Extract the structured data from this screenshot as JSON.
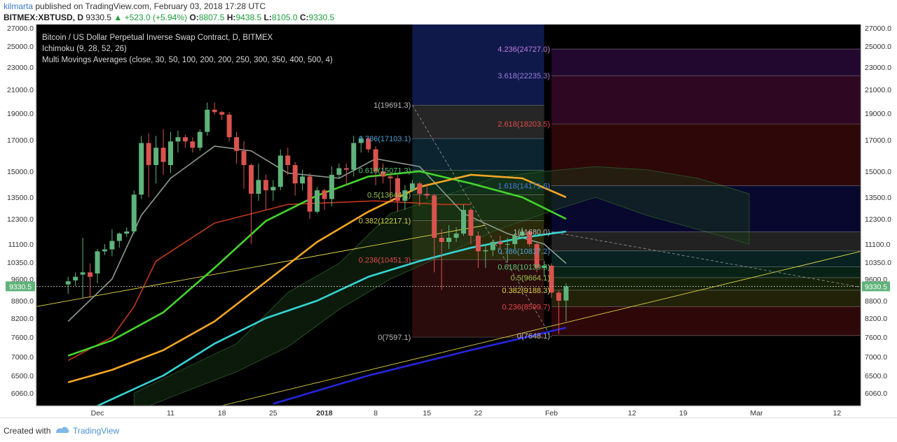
{
  "header": {
    "author": "kilmarta",
    "published": "published on TradingView.com, February 03, 2018 17:28 UTC",
    "symbol": "BITMEX:XBTUSD, D",
    "last": "9330.5",
    "change": "+523.0 (+5.94%)",
    "open_label": "O:",
    "open": "8807.5",
    "high_label": "H:",
    "high": "9438.5",
    "low_label": "L:",
    "low": "8105.0",
    "close_label": "C:",
    "close": "9330.5"
  },
  "legend": {
    "title": "Bitcoin / US Dollar Perpetual Inverse Swap Contract, D, BITMEX",
    "ichimoku": "Ichimoku (9, 28, 52, 26)",
    "mma": "Multi Movings Averages (close, 30, 50, 100, 200, 200, 250, 300, 350, 400, 500, 4)"
  },
  "footer": {
    "created": "Created with",
    "brand": "TradingView"
  },
  "colors": {
    "background": "#000000",
    "up": "#5fb37a",
    "down": "#d9534f",
    "ma30": "#44d62c",
    "ma50": "#f5a623",
    "ma100": "#35d6d6",
    "ma200": "#2626e0",
    "tenkan": "#8c9c8c",
    "kijun": "#c0391b"
  },
  "chart_data": {
    "type": "candlestick",
    "price_label": "9330.5",
    "y_ticks": [
      "27000.0",
      "25000.0",
      "23000.0",
      "21000.0",
      "19000.0",
      "17000.0",
      "15000.0",
      "13500.0",
      "12300.0",
      "11100.0",
      "10350.0",
      "9600.0",
      "8800.0",
      "8200.0",
      "7600.0",
      "7000.0",
      "6500.0",
      "6060.0"
    ],
    "x_ticks": [
      "Dec",
      "11",
      "18",
      "25",
      "2018",
      "8",
      "15",
      "22",
      "Feb",
      "12",
      "19",
      "Mar",
      "12"
    ],
    "x_tick_dates": [
      "2017-12-01",
      "2017-12-11",
      "2017-12-18",
      "2017-12-25",
      "2018-01-01",
      "2018-01-08",
      "2018-01-15",
      "2018-01-22",
      "2018-02-01",
      "2018-02-12",
      "2018-02-19",
      "2018-03-01",
      "2018-03-12"
    ],
    "candles": [
      {
        "d": "2017-11-27",
        "o": 9400,
        "h": 9700,
        "l": 9050,
        "c": 9520
      },
      {
        "d": "2017-11-28",
        "o": 9550,
        "h": 9900,
        "l": 9350,
        "c": 9700
      },
      {
        "d": "2017-11-29",
        "o": 9800,
        "h": 11400,
        "l": 8900,
        "c": 9900
      },
      {
        "d": "2017-11-30",
        "o": 9900,
        "h": 10300,
        "l": 8900,
        "c": 9700
      },
      {
        "d": "2017-12-01",
        "o": 9850,
        "h": 10900,
        "l": 9450,
        "c": 10800
      },
      {
        "d": "2017-12-02",
        "o": 10800,
        "h": 11100,
        "l": 10650,
        "c": 10880
      },
      {
        "d": "2017-12-03",
        "o": 10880,
        "h": 11800,
        "l": 10600,
        "c": 11250
      },
      {
        "d": "2017-12-04",
        "o": 11250,
        "h": 11650,
        "l": 10950,
        "c": 11600
      },
      {
        "d": "2017-12-05",
        "o": 11600,
        "h": 11900,
        "l": 11450,
        "c": 11700
      },
      {
        "d": "2017-12-06",
        "o": 11700,
        "h": 13900,
        "l": 11600,
        "c": 13650
      },
      {
        "d": "2017-12-07",
        "o": 13650,
        "h": 17300,
        "l": 13400,
        "c": 16800
      },
      {
        "d": "2017-12-08",
        "o": 16800,
        "h": 17500,
        "l": 13500,
        "c": 15400
      },
      {
        "d": "2017-12-09",
        "o": 15400,
        "h": 17300,
        "l": 14300,
        "c": 16500
      },
      {
        "d": "2017-12-10",
        "o": 16500,
        "h": 17800,
        "l": 14800,
        "c": 15600
      },
      {
        "d": "2017-12-11",
        "o": 15400,
        "h": 17600,
        "l": 14900,
        "c": 16900
      },
      {
        "d": "2017-12-12",
        "o": 16900,
        "h": 17700,
        "l": 16200,
        "c": 17200
      },
      {
        "d": "2017-12-13",
        "o": 17200,
        "h": 17400,
        "l": 16500,
        "c": 16900
      },
      {
        "d": "2017-12-14",
        "o": 16900,
        "h": 17200,
        "l": 16200,
        "c": 16500
      },
      {
        "d": "2017-12-15",
        "o": 16500,
        "h": 17800,
        "l": 16300,
        "c": 17600
      },
      {
        "d": "2017-12-16",
        "o": 17600,
        "h": 19900,
        "l": 17300,
        "c": 19300
      },
      {
        "d": "2017-12-17",
        "o": 19300,
        "h": 19900,
        "l": 18900,
        "c": 19100
      },
      {
        "d": "2017-12-18",
        "o": 19100,
        "h": 19200,
        "l": 18500,
        "c": 18900
      },
      {
        "d": "2017-12-19",
        "o": 18900,
        "h": 19100,
        "l": 16900,
        "c": 17200
      },
      {
        "d": "2017-12-20",
        "o": 17200,
        "h": 17600,
        "l": 15500,
        "c": 16300
      },
      {
        "d": "2017-12-21",
        "o": 16300,
        "h": 16900,
        "l": 14000,
        "c": 15400
      },
      {
        "d": "2017-12-22",
        "o": 15400,
        "h": 15500,
        "l": 11100,
        "c": 13700
      },
      {
        "d": "2017-12-23",
        "o": 13700,
        "h": 15500,
        "l": 13300,
        "c": 14500
      },
      {
        "d": "2017-12-24",
        "o": 14500,
        "h": 14800,
        "l": 12800,
        "c": 13900
      },
      {
        "d": "2017-12-25",
        "o": 13900,
        "h": 14500,
        "l": 13300,
        "c": 14100
      },
      {
        "d": "2017-12-26",
        "o": 14100,
        "h": 16400,
        "l": 13900,
        "c": 16000
      },
      {
        "d": "2017-12-27",
        "o": 16000,
        "h": 16500,
        "l": 14800,
        "c": 15400
      },
      {
        "d": "2017-12-28",
        "o": 15400,
        "h": 15600,
        "l": 13600,
        "c": 14300
      },
      {
        "d": "2017-12-29",
        "o": 14300,
        "h": 15100,
        "l": 13900,
        "c": 14700
      },
      {
        "d": "2017-12-30",
        "o": 14700,
        "h": 14900,
        "l": 12300,
        "c": 12700
      },
      {
        "d": "2017-12-31",
        "o": 12700,
        "h": 14100,
        "l": 12600,
        "c": 13900
      },
      {
        "d": "2018-01-01",
        "o": 13900,
        "h": 14000,
        "l": 12800,
        "c": 13400
      },
      {
        "d": "2018-01-02",
        "o": 13400,
        "h": 15300,
        "l": 13000,
        "c": 14800
      },
      {
        "d": "2018-01-03",
        "o": 14800,
        "h": 15500,
        "l": 14600,
        "c": 15200
      },
      {
        "d": "2018-01-04",
        "o": 15200,
        "h": 15500,
        "l": 14200,
        "c": 15100
      },
      {
        "d": "2018-01-05",
        "o": 15100,
        "h": 17300,
        "l": 14700,
        "c": 16800
      },
      {
        "d": "2018-01-06",
        "o": 16800,
        "h": 17300,
        "l": 16200,
        "c": 17100
      },
      {
        "d": "2018-01-07",
        "o": 17100,
        "h": 17200,
        "l": 16200,
        "c": 16400
      },
      {
        "d": "2018-01-08",
        "o": 16400,
        "h": 16600,
        "l": 14200,
        "c": 15000
      },
      {
        "d": "2018-01-09",
        "o": 15000,
        "h": 15500,
        "l": 14300,
        "c": 14700
      },
      {
        "d": "2018-01-10",
        "o": 14700,
        "h": 14900,
        "l": 13200,
        "c": 14600
      },
      {
        "d": "2018-01-11",
        "o": 14600,
        "h": 14800,
        "l": 12700,
        "c": 13300
      },
      {
        "d": "2018-01-12",
        "o": 13300,
        "h": 14200,
        "l": 12800,
        "c": 13900
      },
      {
        "d": "2018-01-13",
        "o": 13900,
        "h": 14500,
        "l": 13800,
        "c": 14300
      },
      {
        "d": "2018-01-14",
        "o": 14300,
        "h": 14400,
        "l": 13000,
        "c": 13700
      },
      {
        "d": "2018-01-15",
        "o": 13700,
        "h": 14300,
        "l": 13400,
        "c": 13600
      },
      {
        "d": "2018-01-16",
        "o": 13600,
        "h": 13700,
        "l": 9900,
        "c": 11400
      },
      {
        "d": "2018-01-17",
        "o": 11400,
        "h": 11800,
        "l": 9200,
        "c": 11200
      },
      {
        "d": "2018-01-18",
        "o": 11200,
        "h": 12000,
        "l": 10900,
        "c": 11400
      },
      {
        "d": "2018-01-19",
        "o": 11400,
        "h": 11900,
        "l": 11200,
        "c": 11600
      },
      {
        "d": "2018-01-20",
        "o": 11600,
        "h": 13100,
        "l": 11500,
        "c": 12800
      },
      {
        "d": "2018-01-21",
        "o": 12800,
        "h": 12900,
        "l": 11100,
        "c": 11500
      },
      {
        "d": "2018-01-22",
        "o": 11500,
        "h": 11700,
        "l": 10100,
        "c": 10800
      },
      {
        "d": "2018-01-23",
        "o": 10800,
        "h": 11100,
        "l": 10100,
        "c": 10850
      },
      {
        "d": "2018-01-24",
        "o": 10850,
        "h": 11300,
        "l": 10600,
        "c": 11200
      },
      {
        "d": "2018-01-25",
        "o": 11200,
        "h": 11500,
        "l": 10900,
        "c": 11100
      },
      {
        "d": "2018-01-26",
        "o": 11100,
        "h": 11400,
        "l": 10350,
        "c": 11100
      },
      {
        "d": "2018-01-27",
        "o": 11100,
        "h": 11600,
        "l": 10900,
        "c": 11500
      },
      {
        "d": "2018-01-28",
        "o": 11500,
        "h": 11900,
        "l": 11400,
        "c": 11700
      },
      {
        "d": "2018-01-29",
        "o": 11700,
        "h": 11750,
        "l": 11000,
        "c": 11100
      },
      {
        "d": "2018-01-30",
        "o": 11100,
        "h": 11200,
        "l": 9900,
        "c": 10100
      },
      {
        "d": "2018-01-31",
        "o": 10100,
        "h": 10400,
        "l": 9700,
        "c": 10200
      },
      {
        "d": "2018-02-01",
        "o": 10200,
        "h": 10300,
        "l": 8900,
        "c": 9100
      },
      {
        "d": "2018-02-02",
        "o": 9100,
        "h": 9200,
        "l": 7700,
        "c": 8800
      },
      {
        "d": "2018-02-03",
        "o": 8807.5,
        "h": 9438.5,
        "l": 8105,
        "c": 9330.5
      }
    ],
    "moving_averages": [
      {
        "name": "MA 30",
        "color": "#44d62c",
        "points": [
          [
            "2017-11-27",
            7030
          ],
          [
            "2017-12-03",
            7500
          ],
          [
            "2017-12-10",
            8400
          ],
          [
            "2017-12-17",
            10100
          ],
          [
            "2017-12-24",
            12200
          ],
          [
            "2017-12-31",
            13600
          ],
          [
            "2018-01-07",
            14700
          ],
          [
            "2018-01-14",
            15000
          ],
          [
            "2018-01-21",
            14300
          ],
          [
            "2018-01-28",
            13500
          ],
          [
            "2018-02-03",
            12300
          ]
        ]
      },
      {
        "name": "MA 50",
        "color": "#f5a623",
        "points": [
          [
            "2017-11-27",
            6330
          ],
          [
            "2017-12-03",
            6650
          ],
          [
            "2017-12-10",
            7200
          ],
          [
            "2017-12-17",
            8100
          ],
          [
            "2017-12-24",
            9500
          ],
          [
            "2017-12-31",
            11200
          ],
          [
            "2018-01-07",
            12700
          ],
          [
            "2018-01-14",
            14100
          ],
          [
            "2018-01-21",
            14800
          ],
          [
            "2018-01-28",
            14600
          ],
          [
            "2018-02-03",
            13500
          ]
        ]
      },
      {
        "name": "MA 100",
        "color": "#35d6d6",
        "points": [
          [
            "2017-12-01",
            5750
          ],
          [
            "2017-12-10",
            6500
          ],
          [
            "2017-12-17",
            7400
          ],
          [
            "2017-12-24",
            8200
          ],
          [
            "2017-12-31",
            8800
          ],
          [
            "2018-01-07",
            9700
          ],
          [
            "2018-01-14",
            10400
          ],
          [
            "2018-01-21",
            10950
          ],
          [
            "2018-01-28",
            11400
          ],
          [
            "2018-02-03",
            11700
          ]
        ]
      },
      {
        "name": "MA 200",
        "color": "#2626e0",
        "points": [
          [
            "2017-12-25",
            5800
          ],
          [
            "2018-01-07",
            6500
          ],
          [
            "2018-01-21",
            7200
          ],
          [
            "2018-02-03",
            7900
          ]
        ]
      }
    ],
    "fib_left": [
      {
        "label": "1(19691.3)",
        "value": 19691.3
      },
      {
        "label": "0.786(17103.1)",
        "value": 17103.1
      },
      {
        "label": "0.618(15071.3)",
        "value": 15071.3
      },
      {
        "label": "0.5(13644.2)",
        "value": 13644.2
      },
      {
        "label": "0.382(12217.1)",
        "value": 12217.1
      },
      {
        "label": "0.236(10451.3)",
        "value": 10451.3
      },
      {
        "label": "0(7597.1)",
        "value": 7597.1
      }
    ],
    "fib_right": [
      {
        "label": "4.236(24727.0)",
        "value": 24727.0
      },
      {
        "label": "3.618(22235.3)",
        "value": 22235.3
      },
      {
        "label": "2.618(18203.5)",
        "value": 18203.5
      },
      {
        "label": "1.618(14171.6)",
        "value": 14171.6
      },
      {
        "label": "1(11680.0)",
        "value": 11680.0
      },
      {
        "label": "0.786(10817.2)",
        "value": 10817.2
      },
      {
        "label": "0.618(10139.8)",
        "value": 10139.8
      },
      {
        "label": "0.5(9664.1)",
        "value": 9664.1
      },
      {
        "label": "0.382(9188.3)",
        "value": 9188.3
      },
      {
        "label": "0.236(8599.7)",
        "value": 8599.7
      },
      {
        "label": "0(7648.1)",
        "value": 7648.1
      }
    ]
  }
}
